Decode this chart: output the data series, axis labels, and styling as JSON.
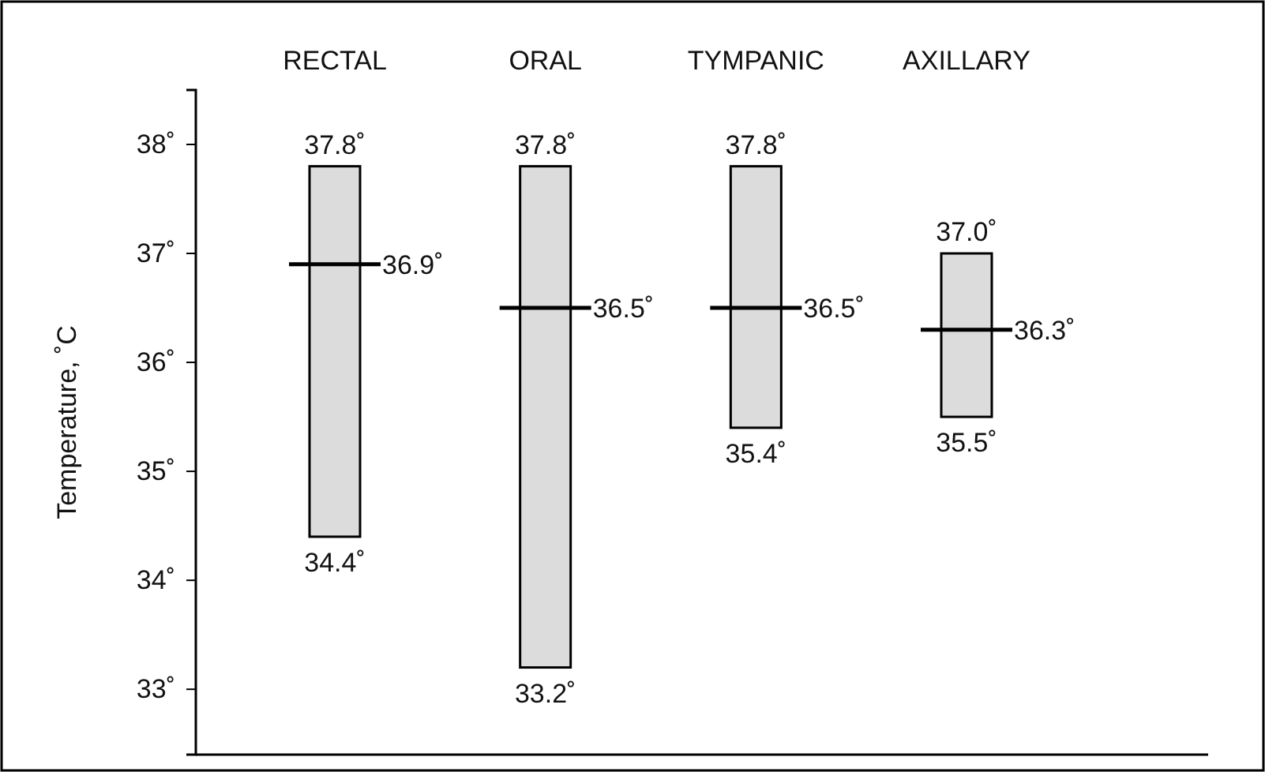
{
  "chart_data": {
    "type": "box",
    "ylabel": "Temperature, ˚C",
    "categories": [
      "RECTAL",
      "ORAL",
      "TYMPANIC",
      "AXILLARY"
    ],
    "boxes": [
      {
        "low": 34.4,
        "q1": 34.4,
        "median": 36.9,
        "q3": 37.8,
        "high": 37.8
      },
      {
        "low": 33.2,
        "q1": 33.2,
        "median": 36.5,
        "q3": 37.8,
        "high": 37.8
      },
      {
        "low": 35.4,
        "q1": 35.4,
        "median": 36.5,
        "q3": 37.8,
        "high": 37.8
      },
      {
        "low": 35.5,
        "q1": 35.5,
        "median": 36.3,
        "q3": 37.0,
        "high": 37.0
      }
    ],
    "color": "#dcdcdc",
    "ylim": [
      32.4,
      38.5
    ],
    "yticks": [
      {
        "value": 33,
        "label": "33˚"
      },
      {
        "value": 34,
        "label": "34˚"
      },
      {
        "value": 35,
        "label": "35˚"
      },
      {
        "value": 36,
        "label": "36˚"
      },
      {
        "value": 37,
        "label": "37˚"
      },
      {
        "value": 38,
        "label": "38˚"
      }
    ],
    "annotations": [
      {
        "text": "37.8˚",
        "x": "RECTAL",
        "y": 37.8
      },
      {
        "text": "36.9˚",
        "x": "RECTAL",
        "y": 36.9
      },
      {
        "text": "34.4˚",
        "x": "RECTAL",
        "y": 34.4
      },
      {
        "text": "37.8˚",
        "x": "ORAL",
        "y": 37.8
      },
      {
        "text": "36.5˚",
        "x": "ORAL",
        "y": 36.5
      },
      {
        "text": "33.2˚",
        "x": "ORAL",
        "y": 33.2
      },
      {
        "text": "37.8˚",
        "x": "TYMPANIC",
        "y": 37.8
      },
      {
        "text": "36.5˚",
        "x": "TYMPANIC",
        "y": 36.5
      },
      {
        "text": "35.4˚",
        "x": "TYMPANIC",
        "y": 35.4
      },
      {
        "text": "37.0˚",
        "x": "AXILLARY",
        "y": 37.0
      },
      {
        "text": "36.3˚",
        "x": "AXILLARY",
        "y": 36.3
      },
      {
        "text": "35.5˚",
        "x": "AXILLARY",
        "y": 35.5
      }
    ]
  }
}
